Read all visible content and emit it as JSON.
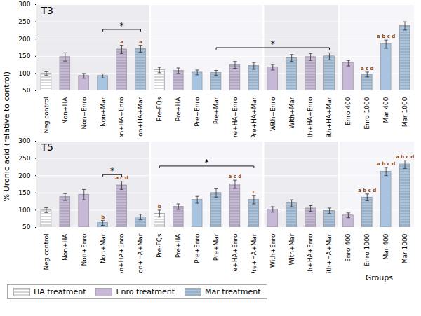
{
  "chart_data": {
    "type": "bar",
    "ylabel": "% Uronic acid (relative to control)",
    "xlabel": "Groups",
    "categories": [
      "Neg control",
      "Non+HA",
      "Non+Enro",
      "Non+Mar",
      "Non+HA+Enro",
      "Non+HA+Mar",
      "Pre-FQs",
      "Pre+HA",
      "Pre+Enro",
      "Pre+Mar",
      "Pre+HA+Enro",
      "Pre+HA+Mar",
      "With+Enro",
      "With+Mar",
      "With+HA+Enro",
      "With+HA+Mar",
      "Enro 400",
      "Enro 1000",
      "Mar 400",
      "Mar 1000"
    ],
    "colors": [
      "white",
      "#c8b8d8",
      "#c8b8d8",
      "#a8c4e0",
      "#c8b8d8",
      "#a8c4e0",
      "white",
      "#c8b8d8",
      "#a8c4e0",
      "#a8c4e0",
      "#c8b8d8",
      "#a8c4e0",
      "#c8b8d8",
      "#a8c4e0",
      "#c8b8d8",
      "#a8c4e0",
      "#c8b8d8",
      "#a8c4e0",
      "#a8c4e0",
      "#a8c4e0"
    ],
    "hatched": [
      true,
      true,
      false,
      false,
      true,
      true,
      true,
      true,
      false,
      true,
      true,
      true,
      false,
      true,
      true,
      true,
      false,
      true,
      false,
      true
    ],
    "ylim": [
      50,
      300
    ],
    "yticks": [
      50,
      100,
      150,
      200,
      250,
      300
    ],
    "grid": true,
    "panels": [
      {
        "title": "T3",
        "values": [
          100,
          148,
          93,
          93,
          170,
          172,
          110,
          108,
          103,
          102,
          125,
          122,
          118,
          145,
          148,
          150,
          130,
          97,
          185,
          238
        ],
        "errors": [
          5,
          12,
          7,
          6,
          12,
          10,
          8,
          8,
          7,
          7,
          10,
          10,
          8,
          10,
          10,
          10,
          8,
          7,
          12,
          12
        ],
        "annotations": [
          {
            "category": "Non+HA+Enro",
            "label": "a"
          },
          {
            "category": "Non+HA+Mar",
            "label": "a"
          },
          {
            "category": "Enro 1000",
            "label": "a c d"
          },
          {
            "category": "Mar 400",
            "label": "a b c d"
          }
        ],
        "brackets": [
          {
            "from": "Non+Mar",
            "to": "Non+HA+Mar",
            "y": 228,
            "label": "*"
          },
          {
            "from": "Pre+Mar",
            "to": "With+HA+Mar",
            "y": 175,
            "label": "*"
          }
        ]
      },
      {
        "title": "T5",
        "values": [
          100,
          138,
          145,
          63,
          172,
          80,
          90,
          110,
          130,
          150,
          175,
          130,
          102,
          120,
          105,
          98,
          85,
          137,
          212,
          233
        ],
        "errors": [
          7,
          10,
          15,
          7,
          12,
          8,
          10,
          8,
          10,
          12,
          12,
          12,
          8,
          10,
          8,
          8,
          7,
          10,
          12,
          12
        ],
        "annotations": [
          {
            "category": "Non+Mar",
            "label": "b"
          },
          {
            "category": "Non+HA+Enro",
            "label": "a c d"
          },
          {
            "category": "Pre-FQs",
            "label": "b"
          },
          {
            "category": "Pre+HA+Enro",
            "label": "a c d"
          },
          {
            "category": "Pre+HA+Mar",
            "label": "c"
          },
          {
            "category": "Enro 1000",
            "label": "a b c d"
          },
          {
            "category": "Mar 400",
            "label": "a b c d"
          },
          {
            "category": "Mar 1000",
            "label": "a b c d"
          }
        ],
        "brackets": [
          {
            "from": "Non+Mar",
            "to": "Non+HA+Enro",
            "y": 203,
            "label": "*"
          },
          {
            "from": "Pre-FQs",
            "to": "Pre+HA+Mar",
            "y": 228,
            "label": "*"
          }
        ]
      }
    ],
    "sections": [
      [
        "Neg control",
        "Non+HA+Mar"
      ],
      [
        "Pre-FQs",
        "Pre+HA+Mar"
      ],
      [
        "With+Enro",
        "With+HA+Mar"
      ],
      [
        "Enro 400",
        "Mar 1000"
      ]
    ],
    "section_colors": [
      "#ebebf0",
      "#f5f5fa",
      "#ebebf0",
      "#f5f5fa"
    ],
    "annotation_color": "#8B4513",
    "legend": "lower left",
    "legend_entries": [
      {
        "name": "HA treatment",
        "color": "white",
        "hatched": true
      },
      {
        "name": "Enro treatment",
        "color": "#c8b8d8",
        "hatched": false
      },
      {
        "name": "Mar treatment",
        "color": "#a8c4e0",
        "hatched": true
      }
    ]
  }
}
